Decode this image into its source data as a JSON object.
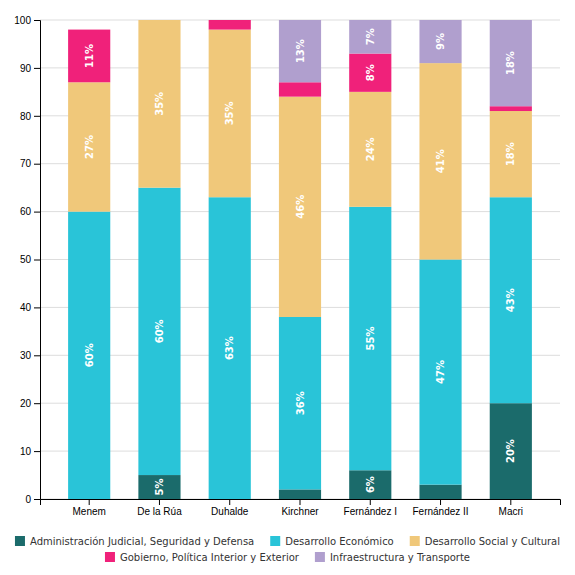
{
  "chart_data": {
    "type": "bar",
    "stacked": true,
    "data_labels": true,
    "grid": true,
    "categories": [
      "Menem",
      "De la Rúa",
      "Duhalde",
      "Kirchner",
      "Fernández I",
      "Fernández II",
      "Macri"
    ],
    "series": [
      {
        "name": "Administración Judicial, Seguridad y Defensa",
        "color": "#1b6b6b",
        "values": [
          0,
          5,
          0,
          2,
          6,
          3,
          20
        ],
        "value_labels": [
          null,
          "5%",
          null,
          null,
          "6%",
          null,
          "20%"
        ]
      },
      {
        "name": "Desarrollo Económico",
        "color": "#29c4d8",
        "values": [
          60,
          60,
          63,
          36,
          55,
          47,
          43
        ],
        "value_labels": [
          "60%",
          "60%",
          "63%",
          "36%",
          "55%",
          "47%",
          "43%"
        ]
      },
      {
        "name": "Desarrollo Social y Cultural",
        "color": "#f0c87a",
        "values": [
          27,
          35,
          35,
          46,
          24,
          41,
          18
        ],
        "value_labels": [
          "27%",
          "35%",
          "35%",
          "46%",
          "24%",
          "41%",
          "18%"
        ]
      },
      {
        "name": "Gobierno, Política Interior y Exterior",
        "color": "#f0217a",
        "values": [
          11,
          0,
          2,
          3,
          8,
          0,
          1
        ],
        "value_labels": [
          "11%",
          null,
          null,
          null,
          "8%",
          null,
          null
        ]
      },
      {
        "name": "Infraestructura y Transporte",
        "color": "#b09fce",
        "values": [
          0,
          0,
          0,
          13,
          7,
          9,
          18
        ],
        "value_labels": [
          null,
          null,
          null,
          "13%",
          "7%",
          "9%",
          "18%"
        ]
      }
    ],
    "ylim": [
      0,
      100
    ],
    "yticks": [
      0,
      10,
      20,
      30,
      40,
      50,
      60,
      70,
      80,
      90,
      100
    ]
  }
}
